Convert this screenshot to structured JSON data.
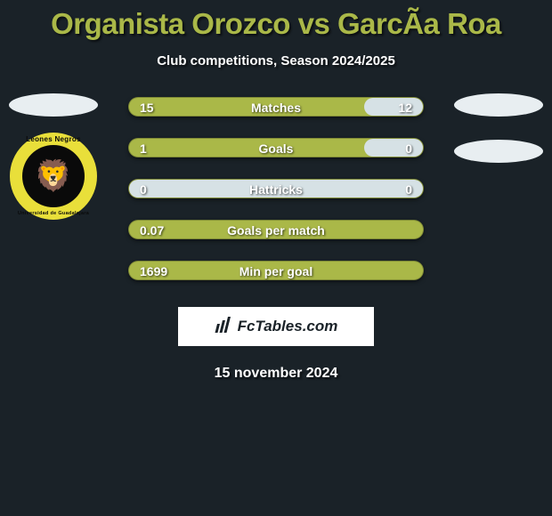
{
  "title": "Organista Orozco vs GarcÃ­a Roa",
  "subtitle": "Club competitions, Season 2024/2025",
  "date": "15 november 2024",
  "brand": "FcTables.com",
  "colors": {
    "background": "#1a2228",
    "accent": "#aab848",
    "neutral": "#d6e1e5",
    "text": "#ffffff",
    "badge_outer": "#e9df3a",
    "badge_inner": "#0a0a0a"
  },
  "left_club": {
    "name": "Leones Negros",
    "subtitle": "Universidad de Guadalajara"
  },
  "bars": [
    {
      "label": "Matches",
      "left": "15",
      "right": "12",
      "right_fill_pct": 20,
      "show_right": true,
      "gray_left": false
    },
    {
      "label": "Goals",
      "left": "1",
      "right": "0",
      "right_fill_pct": 20,
      "show_right": true,
      "gray_left": false
    },
    {
      "label": "Hattricks",
      "left": "0",
      "right": "0",
      "right_fill_pct": 0,
      "show_right": true,
      "gray_left": true
    },
    {
      "label": "Goals per match",
      "left": "0.07",
      "right": "",
      "right_fill_pct": 0,
      "show_right": false,
      "gray_left": false
    },
    {
      "label": "Min per goal",
      "left": "1699",
      "right": "",
      "right_fill_pct": 0,
      "show_right": false,
      "gray_left": false
    }
  ]
}
